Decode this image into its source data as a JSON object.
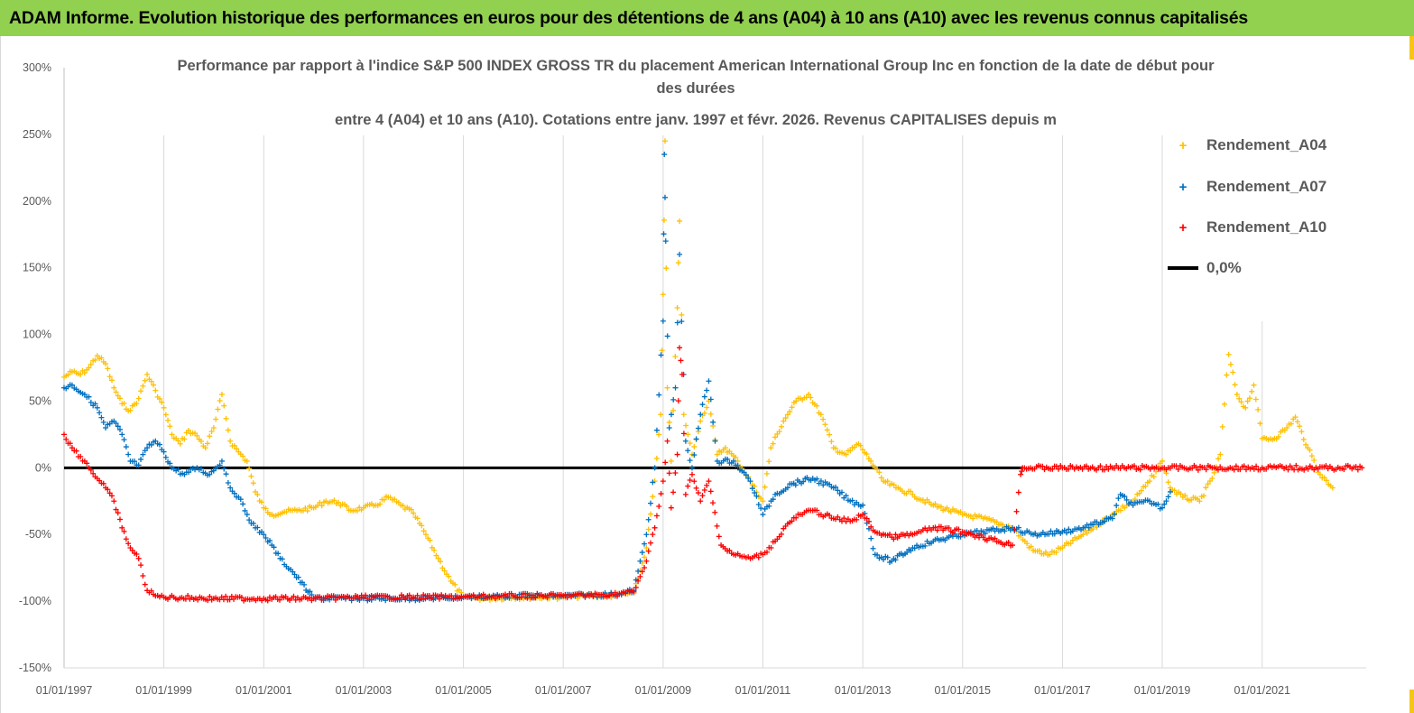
{
  "banner": {
    "title": "ADAM Informe. Evolution historique des performances en euros pour des détentions de 4 ans (A04) à 10 ans (A10) avec les revenus connus capitalisés"
  },
  "colors": {
    "banner_bg": "#92d050",
    "A04": "#ffc000",
    "A07": "#0070c0",
    "A10": "#ff0000",
    "zero_line": "#000000"
  },
  "chart_data": {
    "type": "scatter",
    "title_lines": [
      "Performance par rapport à l'indice S&P 500 INDEX GROSS TR  du placement American International Group Inc en fonction de la date de début pour",
      "des durées",
      "entre 4 (A04) et 10 ans (A10). Cotations entre janv. 1997 et févr. 2026. Revenus CAPITALISES depuis m"
    ],
    "ylim": [
      -150,
      300
    ],
    "yticks": [
      "300%",
      "250%",
      "200%",
      "150%",
      "100%",
      "50%",
      "0%",
      "-50%",
      "-100%",
      "-150%"
    ],
    "ytick_values": [
      300,
      250,
      200,
      150,
      100,
      50,
      0,
      -50,
      -100,
      -150
    ],
    "xlim": [
      "1997-01-01",
      "2023-02-01"
    ],
    "xticks": [
      "01/01/1997",
      "01/01/1999",
      "01/01/2001",
      "01/01/2003",
      "01/01/2005",
      "01/01/2007",
      "01/01/2009",
      "01/01/2011",
      "01/01/2013",
      "01/01/2015",
      "01/01/2017",
      "01/01/2019",
      "01/01/2021"
    ],
    "xtick_dates": [
      "1997-01-01",
      "1999-01-01",
      "2001-01-01",
      "2003-01-01",
      "2005-01-01",
      "2007-01-01",
      "2009-01-01",
      "2011-01-01",
      "2013-01-01",
      "2015-01-01",
      "2017-01-01",
      "2019-01-01",
      "2021-01-01"
    ],
    "grid": "vertical",
    "legend_position": "top-right",
    "series": [
      {
        "name": "Rendement_A04",
        "color": "#ffc000",
        "points": [
          [
            "1997-01-01",
            68
          ],
          [
            "1997-03-01",
            72
          ],
          [
            "1997-05-01",
            70
          ],
          [
            "1997-07-01",
            75
          ],
          [
            "1997-09-01",
            84
          ],
          [
            "1997-11-01",
            78
          ],
          [
            "1998-01-01",
            60
          ],
          [
            "1998-03-01",
            48
          ],
          [
            "1998-05-01",
            43
          ],
          [
            "1998-07-01",
            52
          ],
          [
            "1998-09-01",
            70
          ],
          [
            "1998-11-01",
            58
          ],
          [
            "1999-01-01",
            45
          ],
          [
            "1999-03-01",
            25
          ],
          [
            "1999-05-01",
            18
          ],
          [
            "1999-07-01",
            28
          ],
          [
            "1999-09-01",
            24
          ],
          [
            "1999-11-01",
            15
          ],
          [
            "2000-01-01",
            30
          ],
          [
            "2000-03-01",
            55
          ],
          [
            "2000-05-01",
            20
          ],
          [
            "2000-07-01",
            12
          ],
          [
            "2000-09-01",
            5
          ],
          [
            "2000-11-01",
            -18
          ],
          [
            "2001-01-01",
            -30
          ],
          [
            "2001-03-01",
            -35
          ],
          [
            "2001-06-01",
            -33
          ],
          [
            "2001-09-01",
            -32
          ],
          [
            "2002-01-01",
            -30
          ],
          [
            "2002-04-01",
            -25
          ],
          [
            "2002-07-01",
            -26
          ],
          [
            "2002-10-01",
            -32
          ],
          [
            "2003-01-01",
            -30
          ],
          [
            "2003-04-01",
            -28
          ],
          [
            "2003-07-01",
            -22
          ],
          [
            "2003-10-01",
            -28
          ],
          [
            "2004-01-01",
            -34
          ],
          [
            "2004-04-01",
            -50
          ],
          [
            "2004-07-01",
            -68
          ],
          [
            "2004-10-01",
            -85
          ],
          [
            "2005-01-01",
            -97
          ],
          [
            "2005-06-01",
            -98
          ],
          [
            "2006-01-01",
            -97
          ],
          [
            "2006-06-01",
            -97
          ],
          [
            "2007-01-01",
            -97
          ],
          [
            "2007-06-01",
            -96
          ],
          [
            "2008-01-01",
            -96
          ],
          [
            "2008-06-01",
            -94
          ],
          [
            "2008-09-01",
            -60
          ],
          [
            "2008-11-01",
            -10
          ],
          [
            "2008-12-15",
            40
          ],
          [
            "2009-01-01",
            130
          ],
          [
            "2009-01-15",
            245
          ],
          [
            "2009-02-01",
            60
          ],
          [
            "2009-03-01",
            5
          ],
          [
            "2009-04-15",
            120
          ],
          [
            "2009-05-01",
            185
          ],
          [
            "2009-06-01",
            40
          ],
          [
            "2009-08-01",
            10
          ],
          [
            "2009-10-01",
            35
          ],
          [
            "2009-12-01",
            50
          ],
          [
            "2010-02-01",
            10
          ],
          [
            "2010-04-01",
            15
          ],
          [
            "2010-07-01",
            5
          ],
          [
            "2010-10-01",
            -10
          ],
          [
            "2011-01-01",
            -25
          ],
          [
            "2011-03-01",
            15
          ],
          [
            "2011-06-01",
            35
          ],
          [
            "2011-09-01",
            50
          ],
          [
            "2011-12-01",
            55
          ],
          [
            "2012-03-01",
            40
          ],
          [
            "2012-06-01",
            15
          ],
          [
            "2012-09-01",
            10
          ],
          [
            "2012-12-01",
            18
          ],
          [
            "2013-03-01",
            5
          ],
          [
            "2013-06-01",
            -10
          ],
          [
            "2013-09-01",
            -15
          ],
          [
            "2014-01-01",
            -20
          ],
          [
            "2014-06-01",
            -28
          ],
          [
            "2015-01-01",
            -35
          ],
          [
            "2015-06-01",
            -38
          ],
          [
            "2016-01-01",
            -45
          ],
          [
            "2016-06-01",
            -62
          ],
          [
            "2016-10-01",
            -65
          ],
          [
            "2017-01-01",
            -60
          ],
          [
            "2017-06-01",
            -50
          ],
          [
            "2018-01-01",
            -35
          ],
          [
            "2018-06-01",
            -25
          ],
          [
            "2018-10-01",
            -10
          ],
          [
            "2019-01-01",
            5
          ],
          [
            "2019-03-01",
            -15
          ],
          [
            "2019-06-01",
            -22
          ],
          [
            "2019-10-01",
            -25
          ],
          [
            "2020-01-01",
            -8
          ],
          [
            "2020-03-01",
            10
          ],
          [
            "2020-05-01",
            85
          ],
          [
            "2020-07-01",
            55
          ],
          [
            "2020-09-01",
            45
          ],
          [
            "2020-11-01",
            62
          ],
          [
            "2021-01-01",
            22
          ],
          [
            "2021-04-01",
            22
          ],
          [
            "2021-07-01",
            30
          ],
          [
            "2021-09-01",
            38
          ],
          [
            "2021-12-01",
            15
          ],
          [
            "2022-03-01",
            -5
          ],
          [
            "2022-06-01",
            -15
          ]
        ]
      },
      {
        "name": "Rendement_A07",
        "color": "#0070c0",
        "points": [
          [
            "1997-01-01",
            60
          ],
          [
            "1997-03-01",
            62
          ],
          [
            "1997-06-01",
            55
          ],
          [
            "1997-09-01",
            45
          ],
          [
            "1997-11-01",
            30
          ],
          [
            "1998-01-01",
            35
          ],
          [
            "1998-03-01",
            25
          ],
          [
            "1998-05-01",
            5
          ],
          [
            "1998-07-01",
            2
          ],
          [
            "1998-09-01",
            15
          ],
          [
            "1998-11-01",
            20
          ],
          [
            "1999-01-01",
            12
          ],
          [
            "1999-03-01",
            0
          ],
          [
            "1999-06-01",
            -5
          ],
          [
            "1999-09-01",
            0
          ],
          [
            "1999-12-01",
            -5
          ],
          [
            "2000-03-01",
            5
          ],
          [
            "2000-05-01",
            -15
          ],
          [
            "2000-07-01",
            -22
          ],
          [
            "2000-09-01",
            -35
          ],
          [
            "2000-11-01",
            -45
          ],
          [
            "2001-01-01",
            -50
          ],
          [
            "2001-03-01",
            -58
          ],
          [
            "2001-05-01",
            -68
          ],
          [
            "2001-08-01",
            -78
          ],
          [
            "2002-01-01",
            -98
          ],
          [
            "2003-01-01",
            -98
          ],
          [
            "2004-01-01",
            -98
          ],
          [
            "2005-01-01",
            -97
          ],
          [
            "2006-01-01",
            -96
          ],
          [
            "2007-01-01",
            -96
          ],
          [
            "2008-01-01",
            -95
          ],
          [
            "2008-06-01",
            -92
          ],
          [
            "2008-09-01",
            -50
          ],
          [
            "2008-11-01",
            0
          ],
          [
            "2009-01-01",
            110
          ],
          [
            "2009-01-10",
            235
          ],
          [
            "2009-01-20",
            170
          ],
          [
            "2009-02-15",
            30
          ],
          [
            "2009-04-01",
            60
          ],
          [
            "2009-05-01",
            160
          ],
          [
            "2009-06-15",
            20
          ],
          [
            "2009-08-01",
            0
          ],
          [
            "2009-10-01",
            40
          ],
          [
            "2009-12-01",
            65
          ],
          [
            "2010-02-01",
            5
          ],
          [
            "2010-06-01",
            5
          ],
          [
            "2010-10-01",
            -10
          ],
          [
            "2011-01-01",
            -35
          ],
          [
            "2011-04-01",
            -20
          ],
          [
            "2011-08-01",
            -12
          ],
          [
            "2012-01-01",
            -8
          ],
          [
            "2012-06-01",
            -15
          ],
          [
            "2012-10-01",
            -25
          ],
          [
            "2013-01-01",
            -28
          ],
          [
            "2013-04-01",
            -65
          ],
          [
            "2013-08-01",
            -70
          ],
          [
            "2014-01-01",
            -60
          ],
          [
            "2014-06-01",
            -55
          ],
          [
            "2015-01-01",
            -50
          ],
          [
            "2015-06-01",
            -48
          ],
          [
            "2016-01-01",
            -45
          ],
          [
            "2016-06-01",
            -50
          ],
          [
            "2017-01-01",
            -48
          ],
          [
            "2017-06-01",
            -45
          ],
          [
            "2018-01-01",
            -38
          ],
          [
            "2018-03-01",
            -20
          ],
          [
            "2018-06-01",
            -28
          ],
          [
            "2018-10-01",
            -25
          ],
          [
            "2019-01-01",
            -30
          ],
          [
            "2019-03-01",
            -18
          ]
        ]
      },
      {
        "name": "Rendement_A10",
        "color": "#ff0000",
        "points": [
          [
            "1997-01-01",
            25
          ],
          [
            "1997-03-01",
            15
          ],
          [
            "1997-06-01",
            5
          ],
          [
            "1997-09-01",
            -8
          ],
          [
            "1997-11-01",
            -15
          ],
          [
            "1998-01-01",
            -25
          ],
          [
            "1998-03-01",
            -45
          ],
          [
            "1998-05-01",
            -60
          ],
          [
            "1998-07-01",
            -68
          ],
          [
            "1998-09-01",
            -92
          ],
          [
            "1998-11-01",
            -96
          ],
          [
            "1999-01-01",
            -97
          ],
          [
            "2000-01-01",
            -98
          ],
          [
            "2001-01-01",
            -98
          ],
          [
            "2002-01-01",
            -98
          ],
          [
            "2003-01-01",
            -97
          ],
          [
            "2004-01-01",
            -97
          ],
          [
            "2005-01-01",
            -97
          ],
          [
            "2006-01-01",
            -96
          ],
          [
            "2007-01-01",
            -96
          ],
          [
            "2008-01-01",
            -95
          ],
          [
            "2008-06-01",
            -93
          ],
          [
            "2008-09-01",
            -70
          ],
          [
            "2008-11-01",
            -45
          ],
          [
            "2009-01-01",
            -10
          ],
          [
            "2009-02-01",
            20
          ],
          [
            "2009-03-01",
            -30
          ],
          [
            "2009-04-15",
            10
          ],
          [
            "2009-05-01",
            90
          ],
          [
            "2009-05-20",
            70
          ],
          [
            "2009-06-15",
            -20
          ],
          [
            "2009-08-01",
            -5
          ],
          [
            "2009-10-01",
            -25
          ],
          [
            "2009-12-01",
            -10
          ],
          [
            "2010-03-01",
            -58
          ],
          [
            "2010-06-01",
            -65
          ],
          [
            "2010-10-01",
            -68
          ],
          [
            "2011-01-01",
            -65
          ],
          [
            "2011-04-01",
            -55
          ],
          [
            "2011-07-01",
            -42
          ],
          [
            "2011-10-01",
            -35
          ],
          [
            "2012-01-01",
            -32
          ],
          [
            "2012-06-01",
            -38
          ],
          [
            "2012-10-01",
            -40
          ],
          [
            "2013-01-01",
            -35
          ],
          [
            "2013-04-01",
            -48
          ],
          [
            "2013-08-01",
            -52
          ],
          [
            "2014-01-01",
            -50
          ],
          [
            "2014-06-01",
            -45
          ],
          [
            "2015-01-01",
            -48
          ],
          [
            "2015-06-01",
            -52
          ],
          [
            "2016-01-01",
            -58
          ],
          [
            "2016-03-01",
            -5
          ],
          [
            "2016-03-15",
            0
          ],
          [
            "2017-01-01",
            0
          ],
          [
            "2018-01-01",
            0
          ],
          [
            "2019-01-01",
            0
          ],
          [
            "2020-01-01",
            0
          ],
          [
            "2021-01-01",
            0
          ],
          [
            "2022-01-01",
            0
          ],
          [
            "2023-01-01",
            0
          ]
        ]
      }
    ],
    "reference_line": {
      "name": "0,0%",
      "value": 0
    }
  },
  "legend": {
    "items": [
      {
        "label": "Rendement_A04",
        "marker": "+"
      },
      {
        "label": "Rendement_A07",
        "marker": "+"
      },
      {
        "label": "Rendement_A10",
        "marker": "+"
      },
      {
        "label": "0,0%",
        "marker": "line"
      }
    ]
  }
}
